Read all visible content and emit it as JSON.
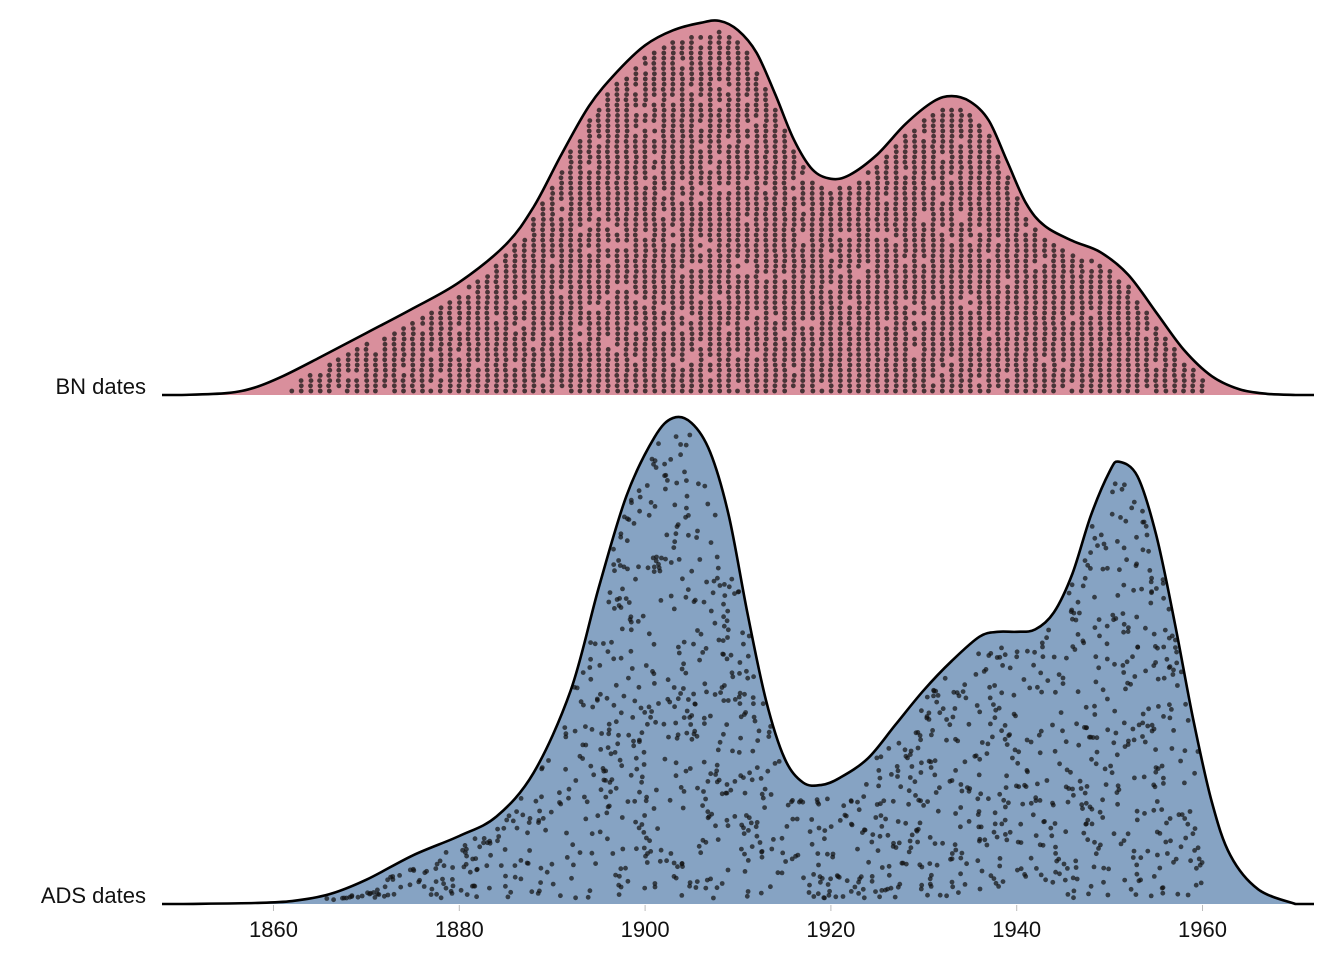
{
  "chart_data": {
    "type": "area",
    "subtype": "ridgeline density with jittered points",
    "title": "",
    "xlabel": "",
    "ylabel": "",
    "xlim": [
      1848,
      1972
    ],
    "x_ticks": [
      1860,
      1880,
      1900,
      1920,
      1940,
      1960
    ],
    "x_tick_labels": [
      "1860",
      "1880",
      "1900",
      "1920",
      "1940",
      "1960"
    ],
    "grid": false,
    "legend": "none",
    "series": [
      {
        "name": "BN dates",
        "color": "#d98f9c",
        "point_color": "#111111",
        "data_range": [
          1861,
          1960
        ],
        "density_relative": [
          [
            1850,
            0.0
          ],
          [
            1855,
            0.005
          ],
          [
            1858,
            0.02
          ],
          [
            1861,
            0.05
          ],
          [
            1865,
            0.1
          ],
          [
            1870,
            0.165
          ],
          [
            1875,
            0.23
          ],
          [
            1880,
            0.3
          ],
          [
            1885,
            0.4
          ],
          [
            1888,
            0.5
          ],
          [
            1891,
            0.64
          ],
          [
            1894,
            0.77
          ],
          [
            1897,
            0.86
          ],
          [
            1900,
            0.93
          ],
          [
            1903,
            0.97
          ],
          [
            1906,
            0.99
          ],
          [
            1908,
            0.995
          ],
          [
            1910,
            0.97
          ],
          [
            1912,
            0.91
          ],
          [
            1914,
            0.8
          ],
          [
            1916,
            0.68
          ],
          [
            1918,
            0.6
          ],
          [
            1920,
            0.575
          ],
          [
            1922,
            0.585
          ],
          [
            1925,
            0.64
          ],
          [
            1928,
            0.72
          ],
          [
            1931,
            0.78
          ],
          [
            1933,
            0.795
          ],
          [
            1935,
            0.78
          ],
          [
            1937,
            0.73
          ],
          [
            1939,
            0.62
          ],
          [
            1941,
            0.51
          ],
          [
            1943,
            0.45
          ],
          [
            1946,
            0.41
          ],
          [
            1949,
            0.38
          ],
          [
            1952,
            0.32
          ],
          [
            1955,
            0.22
          ],
          [
            1958,
            0.12
          ],
          [
            1961,
            0.05
          ],
          [
            1964,
            0.015
          ],
          [
            1967,
            0.003
          ],
          [
            1970,
            0.0
          ]
        ]
      },
      {
        "name": "ADS dates",
        "color": "#86a3c3",
        "point_color": "#111111",
        "data_range": [
          1862,
          1960
        ],
        "density_relative": [
          [
            1850,
            0.0
          ],
          [
            1858,
            0.002
          ],
          [
            1862,
            0.006
          ],
          [
            1866,
            0.02
          ],
          [
            1870,
            0.05
          ],
          [
            1875,
            0.1
          ],
          [
            1880,
            0.14
          ],
          [
            1884,
            0.18
          ],
          [
            1888,
            0.27
          ],
          [
            1892,
            0.44
          ],
          [
            1895,
            0.65
          ],
          [
            1898,
            0.84
          ],
          [
            1901,
            0.96
          ],
          [
            1903,
            1.0
          ],
          [
            1905,
            0.99
          ],
          [
            1907,
            0.93
          ],
          [
            1909,
            0.8
          ],
          [
            1911,
            0.6
          ],
          [
            1913,
            0.42
          ],
          [
            1915,
            0.3
          ],
          [
            1917,
            0.25
          ],
          [
            1919,
            0.245
          ],
          [
            1921,
            0.26
          ],
          [
            1924,
            0.3
          ],
          [
            1927,
            0.37
          ],
          [
            1930,
            0.44
          ],
          [
            1933,
            0.5
          ],
          [
            1936,
            0.55
          ],
          [
            1938,
            0.56
          ],
          [
            1940,
            0.56
          ],
          [
            1942,
            0.565
          ],
          [
            1944,
            0.6
          ],
          [
            1946,
            0.68
          ],
          [
            1948,
            0.8
          ],
          [
            1950,
            0.89
          ],
          [
            1951,
            0.91
          ],
          [
            1953,
            0.88
          ],
          [
            1955,
            0.76
          ],
          [
            1957,
            0.58
          ],
          [
            1959,
            0.38
          ],
          [
            1961,
            0.21
          ],
          [
            1963,
            0.1
          ],
          [
            1966,
            0.03
          ],
          [
            1970,
            0.0
          ]
        ]
      }
    ]
  }
}
